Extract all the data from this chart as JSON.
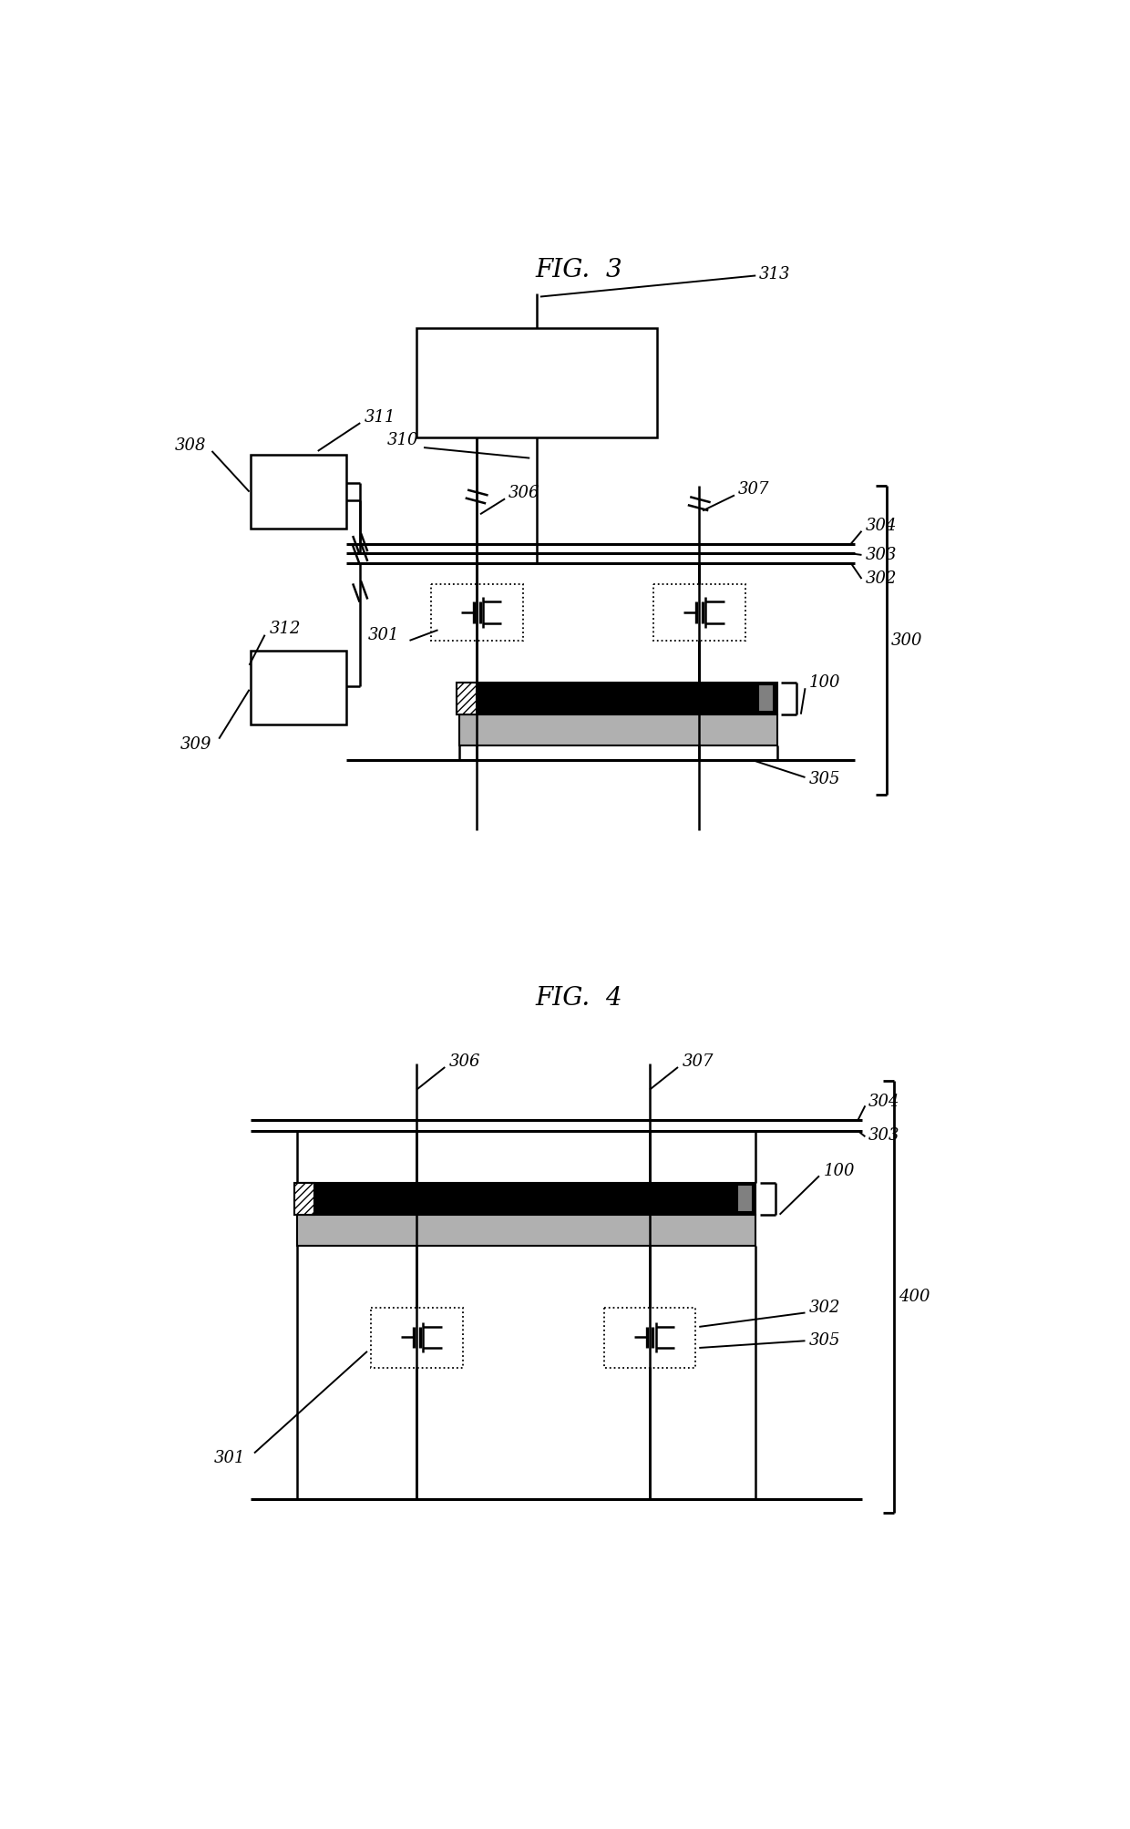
{
  "fig3_title": "FIG.  3",
  "fig4_title": "FIG.  4",
  "bg": "#ffffff",
  "lw_main": 1.8,
  "lw_bus": 2.2,
  "lw_bracket": 2.0,
  "fs_title": 20,
  "fs_label": 13,
  "gray_fill": "#b0b0b0",
  "dark_gray": "#808080"
}
